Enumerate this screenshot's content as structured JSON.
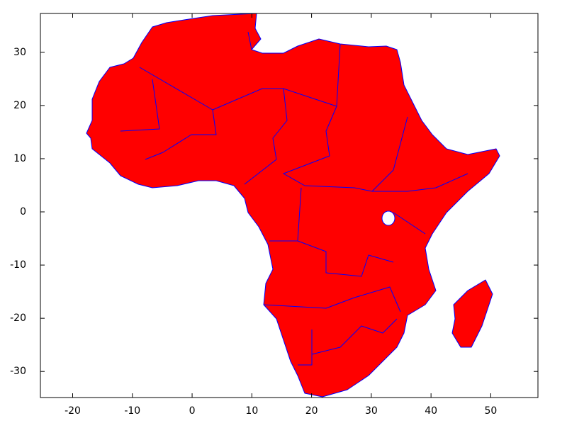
{
  "chart_data": {
    "type": "map",
    "xlim": [
      -25.4,
      57.9
    ],
    "ylim": [
      -34.9,
      37.3
    ],
    "xticks": [
      -20,
      -10,
      0,
      10,
      20,
      30,
      40,
      50
    ],
    "yticks": [
      -30,
      -20,
      -10,
      0,
      10,
      20,
      30
    ],
    "fill": "#ff0000",
    "border_color": "#0000ff"
  }
}
